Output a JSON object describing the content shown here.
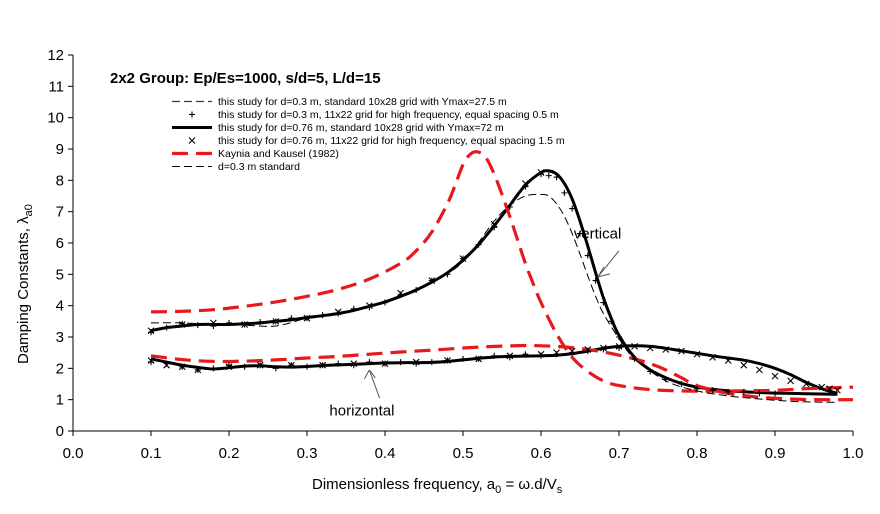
{
  "chart_data": {
    "type": "line",
    "title": "2x2 Group: Ep/Es=1000, s/d=5, L/d=15",
    "xlabel": "Dimensionless frequency, a",
    "xlabel_sub": "0",
    "xlabel_rest": " =  ω.d/V",
    "xlabel_sub2": "s",
    "ylabel": "Damping Constants, λ",
    "ylabel_sub": "a0",
    "xlim": [
      0.0,
      1.0
    ],
    "ylim": [
      0,
      12
    ],
    "xticks": [
      "0.0",
      "0.1",
      "0.2",
      "0.3",
      "0.4",
      "0.5",
      "0.6",
      "0.7",
      "0.8",
      "0.9",
      "1.0"
    ],
    "yticks": [
      "0",
      "1",
      "2",
      "3",
      "4",
      "5",
      "6",
      "7",
      "8",
      "9",
      "10",
      "11",
      "12"
    ],
    "grid": false,
    "legend_position": "top-left",
    "legend": [
      {
        "label": "this study for d=0.3 m, standard 10x28 grid with Ymax=27.5 m",
        "style": "dashed-navy"
      },
      {
        "label": "this study for d=0.3 m, 11x22 grid for high frequency, equal spacing 0.5 m",
        "style": "plus"
      },
      {
        "label": "this study for d=0.76 m, standard 10x28 grid with Ymax=72 m",
        "style": "thick-black"
      },
      {
        "label": "this study for d=0.76 m, 11x22 grid for high frequency, equal spacing 1.5 m",
        "style": "cross"
      },
      {
        "label": "Kaynia and Kausel (1982)",
        "style": "dashed-red"
      },
      {
        "label": "d=0.3 m standard",
        "style": "dashed-black"
      }
    ],
    "annotations": [
      {
        "text": "vertical",
        "at": [
          0.71,
          4.9
        ]
      },
      {
        "text": "horizontal",
        "at": [
          0.38,
          2.0
        ]
      }
    ],
    "series": [
      {
        "name": "this study for d=0.76 m, standard 10x28 grid with Ymax=72 m (vertical)",
        "style": "thick-black",
        "x": [
          0.1,
          0.12,
          0.14,
          0.16,
          0.18,
          0.2,
          0.22,
          0.24,
          0.26,
          0.28,
          0.3,
          0.32,
          0.34,
          0.36,
          0.38,
          0.4,
          0.42,
          0.44,
          0.46,
          0.48,
          0.5,
          0.52,
          0.54,
          0.56,
          0.58,
          0.6,
          0.61,
          0.62,
          0.63,
          0.64,
          0.65,
          0.66,
          0.67,
          0.68,
          0.69,
          0.7,
          0.72,
          0.74,
          0.76,
          0.78,
          0.8,
          0.82,
          0.84,
          0.86,
          0.88,
          0.9,
          0.92,
          0.94,
          0.96,
          0.98
        ],
        "y": [
          3.2,
          3.3,
          3.35,
          3.4,
          3.4,
          3.4,
          3.42,
          3.45,
          3.5,
          3.55,
          3.62,
          3.68,
          3.75,
          3.85,
          3.98,
          4.12,
          4.3,
          4.5,
          4.75,
          5.05,
          5.45,
          5.95,
          6.55,
          7.2,
          7.85,
          8.25,
          8.3,
          8.2,
          7.9,
          7.4,
          6.7,
          5.9,
          5.05,
          4.25,
          3.6,
          3.05,
          2.35,
          1.95,
          1.7,
          1.52,
          1.4,
          1.33,
          1.28,
          1.25,
          1.23,
          1.21,
          1.2,
          1.19,
          1.18,
          1.17
        ]
      },
      {
        "name": "this study for d=0.76 m, standard 10x28 grid with Ymax=72 m (horizontal)",
        "style": "thick-black",
        "x": [
          0.1,
          0.12,
          0.14,
          0.16,
          0.18,
          0.2,
          0.22,
          0.24,
          0.26,
          0.28,
          0.3,
          0.32,
          0.34,
          0.36,
          0.38,
          0.4,
          0.42,
          0.44,
          0.46,
          0.48,
          0.5,
          0.52,
          0.54,
          0.56,
          0.58,
          0.6,
          0.62,
          0.64,
          0.66,
          0.68,
          0.7,
          0.72,
          0.74,
          0.76,
          0.78,
          0.8,
          0.82,
          0.84,
          0.86,
          0.88,
          0.9,
          0.92,
          0.94,
          0.96,
          0.98
        ],
        "y": [
          2.3,
          2.2,
          2.1,
          2.03,
          1.98,
          2.02,
          2.07,
          2.08,
          2.05,
          2.04,
          2.06,
          2.09,
          2.11,
          2.13,
          2.15,
          2.17,
          2.18,
          2.18,
          2.19,
          2.22,
          2.27,
          2.32,
          2.36,
          2.38,
          2.39,
          2.4,
          2.42,
          2.47,
          2.55,
          2.64,
          2.7,
          2.72,
          2.7,
          2.64,
          2.56,
          2.48,
          2.4,
          2.33,
          2.26,
          2.15,
          2.0,
          1.8,
          1.55,
          1.35,
          1.2
        ]
      },
      {
        "name": "Kaynia and Kausel (1982) (vertical)",
        "style": "dashed-red",
        "x": [
          0.1,
          0.14,
          0.18,
          0.22,
          0.26,
          0.3,
          0.34,
          0.38,
          0.42,
          0.44,
          0.46,
          0.48,
          0.49,
          0.5,
          0.51,
          0.52,
          0.53,
          0.54,
          0.55,
          0.56,
          0.57,
          0.58,
          0.59,
          0.6,
          0.62,
          0.64,
          0.66,
          0.68,
          0.7,
          0.74,
          0.78,
          0.82,
          0.86,
          0.9,
          0.94,
          1.0
        ],
        "y": [
          3.8,
          3.82,
          3.87,
          3.98,
          4.12,
          4.3,
          4.52,
          4.85,
          5.35,
          5.75,
          6.35,
          7.25,
          7.85,
          8.5,
          8.85,
          8.9,
          8.7,
          8.2,
          7.55,
          6.85,
          6.1,
          5.35,
          4.7,
          4.1,
          3.1,
          2.35,
          1.9,
          1.6,
          1.45,
          1.32,
          1.28,
          1.27,
          1.28,
          1.3,
          1.35,
          1.4
        ]
      },
      {
        "name": "Kaynia and Kausel (1982) (horizontal)",
        "style": "dashed-red",
        "x": [
          0.1,
          0.14,
          0.18,
          0.22,
          0.26,
          0.3,
          0.34,
          0.38,
          0.42,
          0.46,
          0.5,
          0.54,
          0.58,
          0.6,
          0.62,
          0.64,
          0.66,
          0.68,
          0.7,
          0.72,
          0.74,
          0.76,
          0.78,
          0.8,
          0.84,
          0.88,
          0.92,
          0.96,
          1.0
        ],
        "y": [
          2.4,
          2.28,
          2.22,
          2.23,
          2.27,
          2.33,
          2.38,
          2.45,
          2.52,
          2.58,
          2.65,
          2.7,
          2.73,
          2.72,
          2.7,
          2.66,
          2.6,
          2.52,
          2.42,
          2.3,
          2.15,
          1.95,
          1.7,
          1.45,
          1.2,
          1.08,
          1.02,
          1.0,
          1.0
        ]
      },
      {
        "name": "d=0.3 m standard (vertical)",
        "style": "dashed-black",
        "x": [
          0.1,
          0.14,
          0.18,
          0.22,
          0.26,
          0.3,
          0.34,
          0.38,
          0.42,
          0.46,
          0.5,
          0.54,
          0.56,
          0.58,
          0.6,
          0.61,
          0.62,
          0.63,
          0.64,
          0.65,
          0.66,
          0.67,
          0.68,
          0.7,
          0.72,
          0.76,
          0.8,
          0.84,
          0.88,
          0.92,
          0.96,
          0.98
        ],
        "y": [
          3.45,
          3.45,
          3.4,
          3.38,
          3.35,
          3.6,
          3.78,
          3.95,
          4.3,
          4.75,
          5.4,
          6.7,
          7.2,
          7.5,
          7.55,
          7.5,
          7.25,
          6.85,
          6.3,
          5.65,
          4.95,
          4.3,
          3.75,
          2.95,
          2.3,
          1.6,
          1.28,
          1.12,
          1.02,
          0.95,
          0.92,
          0.92
        ]
      },
      {
        "name": "this study for d=0.3 m, 11x22 grid for high frequency, equal spacing 0.5 m",
        "style": "plus",
        "x": [
          0.1,
          0.12,
          0.14,
          0.16,
          0.18,
          0.2,
          0.22,
          0.24,
          0.26,
          0.28,
          0.3,
          0.32,
          0.34,
          0.36,
          0.38,
          0.4,
          0.42,
          0.44,
          0.46,
          0.48,
          0.5,
          0.52,
          0.54,
          0.56,
          0.58,
          0.6,
          0.61,
          0.62,
          0.63,
          0.64,
          0.65,
          0.66,
          0.67,
          0.68,
          0.69,
          0.7,
          0.72,
          0.74,
          0.76,
          0.78,
          0.8,
          0.82,
          0.84,
          0.86,
          0.88,
          0.9
        ],
        "y": [
          3.15,
          3.3,
          3.42,
          3.38,
          3.35,
          3.45,
          3.4,
          3.48,
          3.5,
          3.6,
          3.6,
          3.7,
          3.75,
          3.9,
          3.95,
          4.1,
          4.35,
          4.5,
          4.8,
          5.0,
          5.5,
          5.95,
          6.5,
          7.15,
          7.8,
          8.2,
          8.15,
          8.1,
          7.6,
          7.1,
          6.3,
          5.6,
          4.8,
          4.1,
          3.5,
          3.0,
          2.3,
          1.9,
          1.65,
          1.5,
          1.35,
          1.3,
          1.25,
          1.25,
          1.2,
          1.2
        ]
      },
      {
        "name": "this study for d=0.3 m, 11x22 grid for high frequency, equal spacing 0.5 m (horizontal)",
        "style": "plus",
        "x": [
          0.1,
          0.12,
          0.14,
          0.16,
          0.18,
          0.2,
          0.22,
          0.24,
          0.26,
          0.28,
          0.3,
          0.32,
          0.34,
          0.36,
          0.38,
          0.4,
          0.42,
          0.44,
          0.46,
          0.48,
          0.5,
          0.52,
          0.54,
          0.56,
          0.58,
          0.6,
          0.62,
          0.64,
          0.66,
          0.68,
          0.7
        ],
        "y": [
          2.2,
          2.15,
          2.05,
          1.95,
          2.0,
          2.1,
          2.05,
          2.1,
          2.0,
          2.1,
          2.05,
          2.1,
          2.15,
          2.1,
          2.2,
          2.15,
          2.2,
          2.15,
          2.2,
          2.25,
          2.3,
          2.3,
          2.4,
          2.35,
          2.45,
          2.4,
          2.45,
          2.5,
          2.55,
          2.6,
          2.65
        ]
      },
      {
        "name": "this study for d=0.76 m, 11x22 grid for high frequency, equal spacing 1.5 m",
        "style": "cross",
        "x": [
          0.1,
          0.12,
          0.14,
          0.16,
          0.2,
          0.24,
          0.28,
          0.32,
          0.36,
          0.4,
          0.44,
          0.48,
          0.52,
          0.56,
          0.6,
          0.62,
          0.64,
          0.66,
          0.68,
          0.7,
          0.72,
          0.74,
          0.76,
          0.78,
          0.8,
          0.82,
          0.84,
          0.86,
          0.88,
          0.9,
          0.92,
          0.94,
          0.96,
          0.97,
          0.98
        ],
        "y": [
          2.25,
          2.1,
          2.05,
          1.95,
          2.05,
          2.1,
          2.1,
          2.1,
          2.15,
          2.15,
          2.2,
          2.25,
          2.3,
          2.4,
          2.45,
          2.5,
          2.55,
          2.6,
          2.65,
          2.7,
          2.7,
          2.65,
          2.6,
          2.55,
          2.45,
          2.35,
          2.25,
          2.1,
          1.95,
          1.75,
          1.6,
          1.5,
          1.4,
          1.35,
          1.3
        ]
      },
      {
        "name": "this study for d=0.76 m, 11x22 grid for high frequency, equal spacing 1.5 m (vertical)",
        "style": "cross",
        "x": [
          0.1,
          0.14,
          0.18,
          0.22,
          0.26,
          0.3,
          0.34,
          0.38,
          0.42,
          0.46,
          0.5,
          0.54,
          0.58,
          0.6
        ],
        "y": [
          3.2,
          3.4,
          3.45,
          3.4,
          3.5,
          3.6,
          3.8,
          4.0,
          4.4,
          4.8,
          5.5,
          6.6,
          7.9,
          8.25
        ]
      }
    ]
  }
}
